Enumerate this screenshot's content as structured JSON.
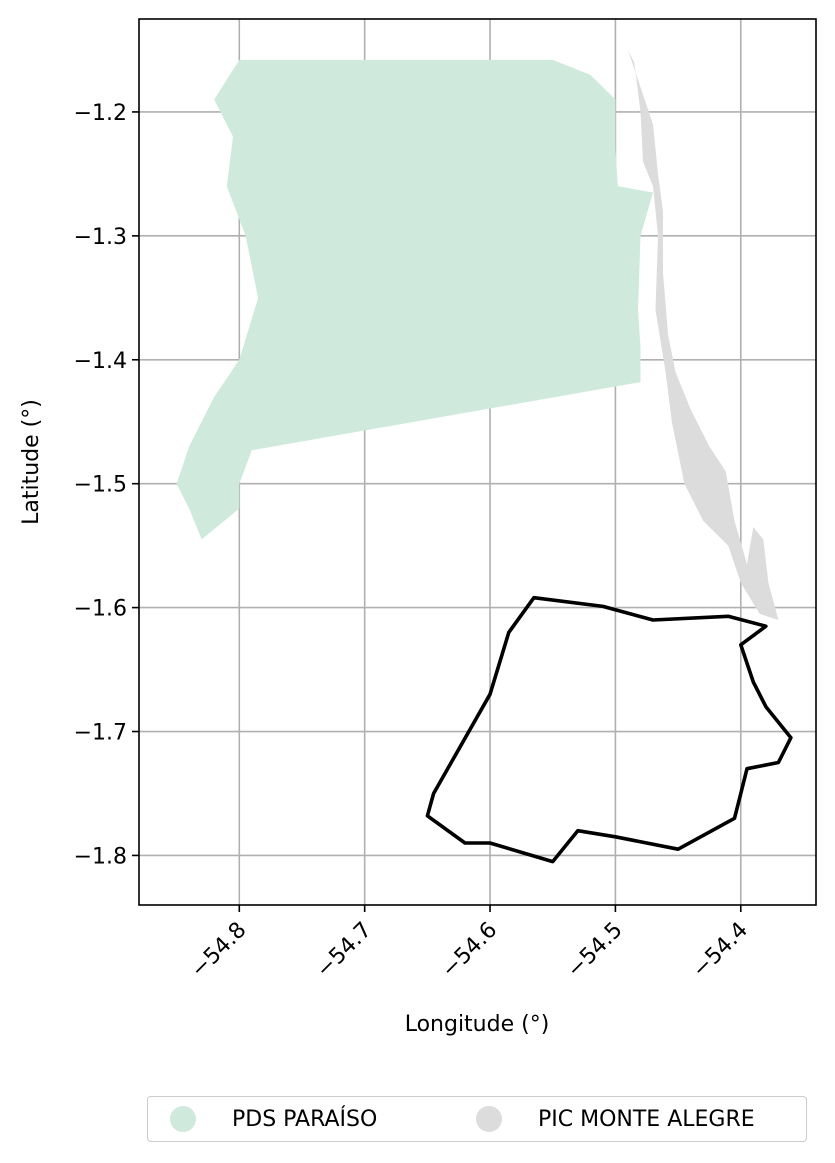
{
  "chart_data": {
    "type": "map",
    "xlabel": "Longitude (°)",
    "ylabel": "Latitude (°)",
    "xlim": [
      -54.88,
      -54.34
    ],
    "ylim": [
      -1.84,
      -1.125
    ],
    "grid": true,
    "x_ticks": [
      {
        "value": -54.8,
        "label": "−54.8"
      },
      {
        "value": -54.7,
        "label": "−54.7"
      },
      {
        "value": -54.6,
        "label": "−54.6"
      },
      {
        "value": -54.5,
        "label": "−54.5"
      },
      {
        "value": -54.4,
        "label": "−54.4"
      }
    ],
    "y_ticks": [
      {
        "value": -1.2,
        "label": "−1.2"
      },
      {
        "value": -1.3,
        "label": "−1.3"
      },
      {
        "value": -1.4,
        "label": "−1.4"
      },
      {
        "value": -1.5,
        "label": "−1.5"
      },
      {
        "value": -1.6,
        "label": "−1.6"
      },
      {
        "value": -1.7,
        "label": "−1.7"
      },
      {
        "value": -1.8,
        "label": "−1.8"
      }
    ],
    "legend_placement": "bottom-center",
    "series": [
      {
        "name": "PIC MONTE ALEGRE",
        "color": "#dcdcdc",
        "polygons": [
          [
            [
              -54.49,
              -1.15
            ],
            [
              -54.485,
              -1.16
            ],
            [
              -54.48,
              -1.2
            ],
            [
              -54.478,
              -1.24
            ],
            [
              -54.47,
              -1.26
            ],
            [
              -54.466,
              -1.3
            ],
            [
              -54.468,
              -1.36
            ],
            [
              -54.46,
              -1.41
            ],
            [
              -54.455,
              -1.45
            ],
            [
              -54.445,
              -1.5
            ],
            [
              -54.43,
              -1.53
            ],
            [
              -54.41,
              -1.55
            ],
            [
              -54.4,
              -1.58
            ],
            [
              -54.385,
              -1.605
            ],
            [
              -54.37,
              -1.61
            ],
            [
              -54.378,
              -1.58
            ],
            [
              -54.382,
              -1.545
            ],
            [
              -54.39,
              -1.535
            ],
            [
              -54.395,
              -1.565
            ],
            [
              -54.405,
              -1.53
            ],
            [
              -54.412,
              -1.49
            ],
            [
              -54.425,
              -1.47
            ],
            [
              -54.44,
              -1.44
            ],
            [
              -54.452,
              -1.41
            ],
            [
              -54.458,
              -1.38
            ],
            [
              -54.462,
              -1.33
            ],
            [
              -54.462,
              -1.28
            ],
            [
              -54.466,
              -1.25
            ],
            [
              -54.47,
              -1.21
            ],
            [
              -54.49,
              -1.15
            ]
          ]
        ]
      },
      {
        "name": "PDS PARAÍSO",
        "color": "#cfeadc",
        "polygons": [
          [
            [
              -54.8,
              -1.158
            ],
            [
              -54.55,
              -1.158
            ],
            [
              -54.52,
              -1.17
            ],
            [
              -54.5,
              -1.19
            ],
            [
              -54.5,
              -1.23
            ],
            [
              -54.498,
              -1.26
            ],
            [
              -54.47,
              -1.265
            ],
            [
              -54.48,
              -1.3
            ],
            [
              -54.482,
              -1.36
            ],
            [
              -54.48,
              -1.39
            ],
            [
              -54.48,
              -1.418
            ],
            [
              -54.79,
              -1.473
            ],
            [
              -54.8,
              -1.5
            ],
            [
              -54.8,
              -1.52
            ],
            [
              -54.83,
              -1.545
            ],
            [
              -54.84,
              -1.52
            ],
            [
              -54.85,
              -1.5
            ],
            [
              -54.84,
              -1.47
            ],
            [
              -54.82,
              -1.43
            ],
            [
              -54.8,
              -1.4
            ],
            [
              -54.785,
              -1.35
            ],
            [
              -54.795,
              -1.3
            ],
            [
              -54.81,
              -1.26
            ],
            [
              -54.805,
              -1.22
            ],
            [
              -54.82,
              -1.19
            ],
            [
              -54.8,
              -1.158
            ]
          ]
        ]
      },
      {
        "name": "",
        "color": "#000000",
        "outline": [
          [
            -54.565,
            -1.592
          ],
          [
            -54.51,
            -1.599
          ],
          [
            -54.47,
            -1.61
          ],
          [
            -54.41,
            -1.607
          ],
          [
            -54.38,
            -1.615
          ],
          [
            -54.4,
            -1.63
          ],
          [
            -54.39,
            -1.66
          ],
          [
            -54.38,
            -1.68
          ],
          [
            -54.36,
            -1.705
          ],
          [
            -54.37,
            -1.725
          ],
          [
            -54.395,
            -1.73
          ],
          [
            -54.4,
            -1.75
          ],
          [
            -54.405,
            -1.77
          ],
          [
            -54.45,
            -1.795
          ],
          [
            -54.5,
            -1.785
          ],
          [
            -54.53,
            -1.78
          ],
          [
            -54.55,
            -1.805
          ],
          [
            -54.6,
            -1.79
          ],
          [
            -54.62,
            -1.79
          ],
          [
            -54.65,
            -1.768
          ],
          [
            -54.645,
            -1.75
          ],
          [
            -54.6,
            -1.67
          ],
          [
            -54.585,
            -1.62
          ],
          [
            -54.565,
            -1.592
          ]
        ]
      }
    ]
  },
  "legend": {
    "items": [
      {
        "label": "PDS PARAÍSO",
        "color": "#cfeadc"
      },
      {
        "label": "PIC MONTE ALEGRE",
        "color": "#dcdcdc"
      }
    ]
  }
}
